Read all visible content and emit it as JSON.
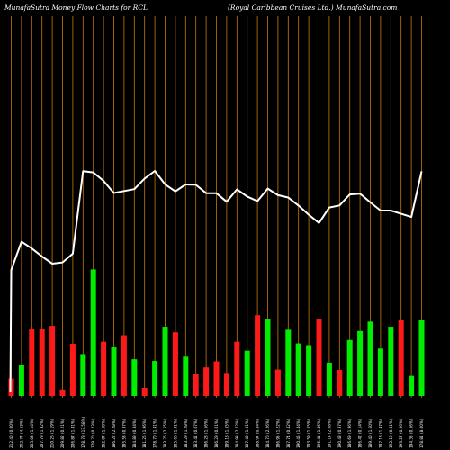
{
  "header": {
    "left_title": "MunafaSutra  Money  Flow  Charts for RCL",
    "right_title": "(Royal Caribbean  Cruises Ltd.) MunafaSutra.com"
  },
  "colors": {
    "background": "#000000",
    "grid": "#c8780a",
    "line": "#ffffff",
    "up": "#00ee00",
    "down": "#ff1a1a"
  },
  "chart_data": {
    "type": "bar",
    "title": "MunafaSutra  Money  Flow  Charts for RCL",
    "subtitle": "(Royal Caribbean  Cruises Ltd.) MunafaSutra.com",
    "categories": [
      "212.40 (0.00%)",
      "202.77 (4.53%)",
      "205.08 (1.14%)",
      "207.79 (1.32%)",
      "210.26 (1.19%)",
      "209.82 (0.21%)",
      "206.87 (1.41%)",
      "178.78 (13.58%)",
      "179.20 (0.23%)",
      "182.07 (1.60%)",
      "186.22 (2.28%)",
      "185.53 (0.37%)",
      "184.89 (0.34%)",
      "181.26 (1.96%)",
      "178.70 (1.41%)",
      "183.26 (2.55%)",
      "185.66 (1.31%)",
      "183.29 (1.28%)",
      "183.41 (0.07%)",
      "186.28 (1.56%)",
      "186.29 (0.01%)",
      "189.18 (1.55%)",
      "184.98 (2.22%)",
      "187.40 (1.31%)",
      "188.97 (0.84%)",
      "184.70 (2.26%)",
      "186.95 (1.22%)",
      "187.74 (0.42%)",
      "190.45 (1.44%)",
      "193.59 (1.65%)",
      "196.41 (1.46%)",
      "191.14 (2.68%)",
      "190.43 (0.37%)",
      "186.69 (1.96%)",
      "186.42 (0.14%)",
      "189.40 (1.60%)",
      "192.18 (1.47%)",
      "192.19 (0.01%)",
      "193.27 (0.56%)",
      "194.35 (0.56%)",
      "178.81 (8.00%)"
    ],
    "price": [
      212.4,
      202.77,
      205.08,
      207.79,
      210.26,
      209.82,
      206.87,
      178.78,
      179.2,
      182.07,
      186.22,
      185.53,
      184.89,
      181.26,
      178.7,
      183.26,
      185.66,
      183.29,
      183.41,
      186.28,
      186.29,
      189.18,
      184.98,
      187.4,
      188.97,
      184.7,
      186.95,
      187.74,
      190.45,
      193.59,
      196.41,
      191.14,
      190.43,
      186.69,
      186.42,
      189.4,
      192.18,
      192.19,
      193.27,
      194.35,
      178.81
    ],
    "series": [
      {
        "values": [
          0.41,
          0.72,
          1.56,
          1.58,
          1.64,
          0.15,
          1.22,
          0.98,
          2.96,
          1.27,
          1.14,
          1.42,
          0.86,
          0.19,
          0.82,
          1.62,
          1.49,
          0.92,
          0.51,
          0.67,
          0.81,
          0.54,
          1.27,
          1.06,
          1.89,
          1.81,
          0.62,
          1.55,
          1.23,
          1.19,
          1.81,
          0.78,
          0.61,
          1.31,
          1.52,
          1.74,
          1.11,
          1.62,
          1.79,
          0.47,
          1.77
        ],
        "direction": [
          "down",
          "up",
          "down",
          "down",
          "down",
          "down",
          "down",
          "up",
          "up",
          "down",
          "up",
          "down",
          "up",
          "down",
          "up",
          "up",
          "down",
          "up",
          "down",
          "down",
          "down",
          "down",
          "down",
          "up",
          "down",
          "up",
          "down",
          "up",
          "up",
          "up",
          "down",
          "up",
          "down",
          "up",
          "up",
          "up",
          "up",
          "up",
          "down",
          "up",
          "up"
        ]
      }
    ],
    "grid": true,
    "ylim": [
      0,
      3.5
    ]
  }
}
